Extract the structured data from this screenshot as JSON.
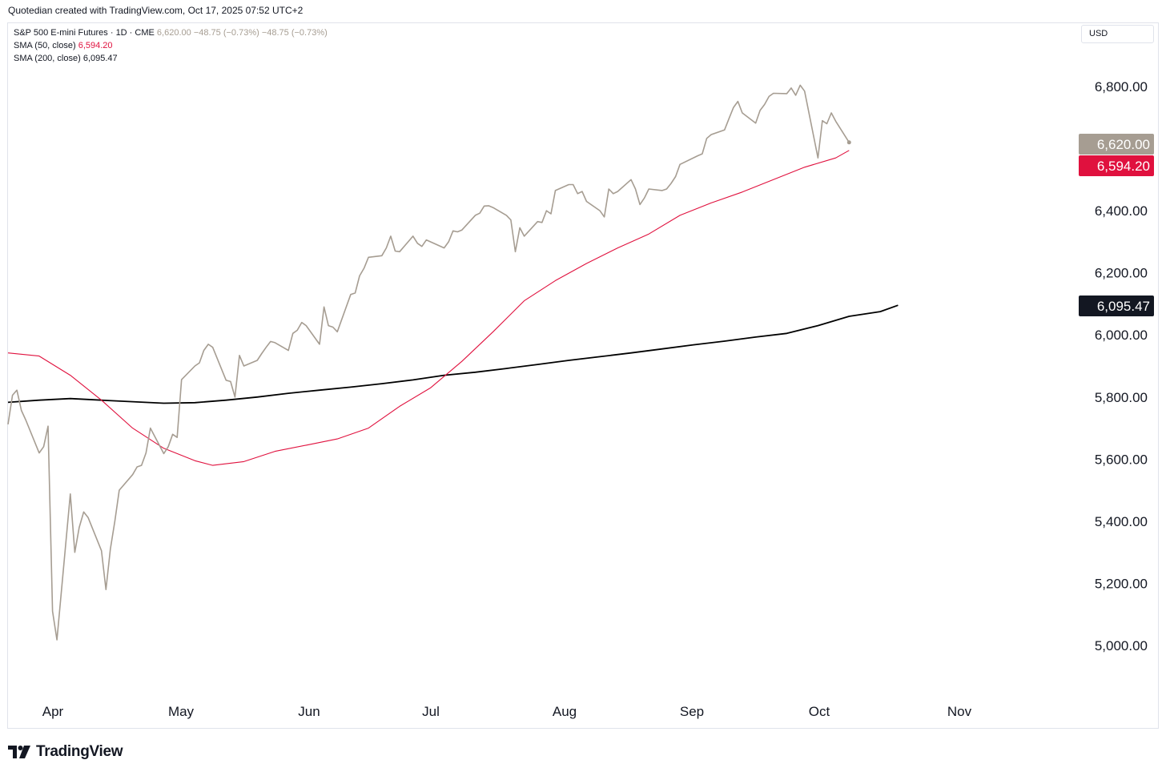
{
  "header": {
    "credit": "Quotedian created with TradingView.com, Oct 17, 2025 07:52 UTC+2"
  },
  "legend": {
    "symbol": "S&P 500 E-mini Futures · 1D · CME",
    "price": "6,620.00",
    "change1": "−48.75 (−0.73%)",
    "change2": "−48.75 (−0.73%)",
    "sma50_label": "SMA (50, close)",
    "sma50_value": "6,594.20",
    "sma200_label": "SMA (200, close)",
    "sma200_value": "6,095.47"
  },
  "currency": "USD",
  "logo": {
    "text": "TradingView"
  },
  "colors": {
    "price": "#a69d92",
    "sma50": "#e0113e",
    "sma200": "#000000",
    "text": "#131722"
  },
  "chart_data": {
    "type": "line",
    "title": "S&P 500 E-mini Futures · 1D · CME",
    "x_months": [
      "Apr",
      "May",
      "Jun",
      "Jul",
      "Aug",
      "Sep",
      "Oct",
      "Nov"
    ],
    "x_range": [
      "2025-03-31",
      "2025-11-05"
    ],
    "ylim": [
      4800,
      7000
    ],
    "y_ticks": [
      {
        "value": 5000,
        "label": "5,000.00"
      },
      {
        "value": 5200,
        "label": "5,200.00"
      },
      {
        "value": 5400,
        "label": "5,400.00"
      },
      {
        "value": 5600,
        "label": "5,600.00"
      },
      {
        "value": 5800,
        "label": "5,800.00"
      },
      {
        "value": 6000,
        "label": "6,000.00"
      },
      {
        "value": 6200,
        "label": "6,200.00"
      },
      {
        "value": 6400,
        "label": "6,400.00"
      },
      {
        "value": 6800,
        "label": "6,800.00"
      }
    ],
    "price_labels": [
      {
        "value": 6620.0,
        "label": "6,620.00",
        "color": "#a69d92"
      },
      {
        "value": 6594.2,
        "label": "6,594.20",
        "color": "#e0113e"
      },
      {
        "value": 6095.47,
        "label": "6,095.47",
        "color": "#131722"
      }
    ],
    "series": [
      {
        "name": "S&P 500 E-mini Futures",
        "color": "#a69d92",
        "points": [
          [
            "2025-03-31",
            5712
          ],
          [
            "2025-04-01",
            5806
          ],
          [
            "2025-04-02",
            5822
          ],
          [
            "2025-04-03",
            5757
          ],
          [
            "2025-04-04",
            5726
          ],
          [
            "2025-04-07",
            5620
          ],
          [
            "2025-04-08",
            5640
          ],
          [
            "2025-04-09",
            5706
          ],
          [
            "2025-04-10",
            5110
          ],
          [
            "2025-04-11",
            5018
          ],
          [
            "2025-04-14",
            5488
          ],
          [
            "2025-04-15",
            5300
          ],
          [
            "2025-04-16",
            5380
          ],
          [
            "2025-04-17",
            5430
          ],
          [
            "2025-04-18",
            5412
          ],
          [
            "2025-04-21",
            5305
          ],
          [
            "2025-04-22",
            5180
          ],
          [
            "2025-04-23",
            5310
          ],
          [
            "2025-04-24",
            5400
          ],
          [
            "2025-04-25",
            5500
          ],
          [
            "2025-04-28",
            5550
          ],
          [
            "2025-04-29",
            5575
          ],
          [
            "2025-04-30",
            5580
          ],
          [
            "2025-05-01",
            5620
          ],
          [
            "2025-05-02",
            5700
          ],
          [
            "2025-05-05",
            5618
          ],
          [
            "2025-05-06",
            5640
          ],
          [
            "2025-05-07",
            5680
          ],
          [
            "2025-05-08",
            5670
          ],
          [
            "2025-05-09",
            5856
          ],
          [
            "2025-05-12",
            5900
          ],
          [
            "2025-05-13",
            5910
          ],
          [
            "2025-05-14",
            5950
          ],
          [
            "2025-05-15",
            5970
          ],
          [
            "2025-05-16",
            5960
          ],
          [
            "2025-05-19",
            5854
          ],
          [
            "2025-05-20",
            5850
          ],
          [
            "2025-05-21",
            5800
          ],
          [
            "2025-05-22",
            5934
          ],
          [
            "2025-05-23",
            5900
          ],
          [
            "2025-05-26",
            5918
          ],
          [
            "2025-05-27",
            5940
          ],
          [
            "2025-05-28",
            5960
          ],
          [
            "2025-05-29",
            5979
          ],
          [
            "2025-05-30",
            5975
          ],
          [
            "2025-06-02",
            5950
          ],
          [
            "2025-06-03",
            6005
          ],
          [
            "2025-06-04",
            6015
          ],
          [
            "2025-06-05",
            6040
          ],
          [
            "2025-06-06",
            6030
          ],
          [
            "2025-06-09",
            5970
          ],
          [
            "2025-06-10",
            6090
          ],
          [
            "2025-06-11",
            6030
          ],
          [
            "2025-06-12",
            6025
          ],
          [
            "2025-06-13",
            6010
          ],
          [
            "2025-06-16",
            6130
          ],
          [
            "2025-06-17",
            6135
          ],
          [
            "2025-06-18",
            6190
          ],
          [
            "2025-06-19",
            6215
          ],
          [
            "2025-06-20",
            6250
          ],
          [
            "2025-06-23",
            6255
          ],
          [
            "2025-06-24",
            6280
          ],
          [
            "2025-06-25",
            6318
          ],
          [
            "2025-06-26",
            6270
          ],
          [
            "2025-06-27",
            6268
          ],
          [
            "2025-06-30",
            6318
          ],
          [
            "2025-07-01",
            6295
          ],
          [
            "2025-07-02",
            6285
          ],
          [
            "2025-07-03",
            6306
          ],
          [
            "2025-07-07",
            6280
          ],
          [
            "2025-07-08",
            6300
          ],
          [
            "2025-07-09",
            6335
          ],
          [
            "2025-07-10",
            6332
          ],
          [
            "2025-07-11",
            6338
          ],
          [
            "2025-07-14",
            6385
          ],
          [
            "2025-07-15",
            6392
          ],
          [
            "2025-07-16",
            6415
          ],
          [
            "2025-07-17",
            6416
          ],
          [
            "2025-07-18",
            6410
          ],
          [
            "2025-07-21",
            6385
          ],
          [
            "2025-07-22",
            6370
          ],
          [
            "2025-07-23",
            6268
          ],
          [
            "2025-07-24",
            6345
          ],
          [
            "2025-07-25",
            6318
          ],
          [
            "2025-07-28",
            6365
          ],
          [
            "2025-07-29",
            6362
          ],
          [
            "2025-07-30",
            6400
          ],
          [
            "2025-07-31",
            6390
          ],
          [
            "2025-08-01",
            6465
          ],
          [
            "2025-08-04",
            6484
          ],
          [
            "2025-08-05",
            6484
          ],
          [
            "2025-08-06",
            6455
          ],
          [
            "2025-08-07",
            6462
          ],
          [
            "2025-08-08",
            6430
          ],
          [
            "2025-08-11",
            6400
          ],
          [
            "2025-08-12",
            6380
          ],
          [
            "2025-08-13",
            6470
          ],
          [
            "2025-08-14",
            6455
          ],
          [
            "2025-08-15",
            6462
          ],
          [
            "2025-08-18",
            6500
          ],
          [
            "2025-08-19",
            6470
          ],
          [
            "2025-08-20",
            6420
          ],
          [
            "2025-08-21",
            6441
          ],
          [
            "2025-08-22",
            6470
          ],
          [
            "2025-08-25",
            6465
          ],
          [
            "2025-08-26",
            6470
          ],
          [
            "2025-08-27",
            6488
          ],
          [
            "2025-08-28",
            6510
          ],
          [
            "2025-08-29",
            6549
          ],
          [
            "2025-09-02",
            6577
          ],
          [
            "2025-09-03",
            6583
          ],
          [
            "2025-09-04",
            6633
          ],
          [
            "2025-09-05",
            6645
          ],
          [
            "2025-09-08",
            6660
          ],
          [
            "2025-09-09",
            6696
          ],
          [
            "2025-09-10",
            6732
          ],
          [
            "2025-09-11",
            6752
          ],
          [
            "2025-09-12",
            6715
          ],
          [
            "2025-09-15",
            6682
          ],
          [
            "2025-09-16",
            6723
          ],
          [
            "2025-09-17",
            6742
          ],
          [
            "2025-09-18",
            6768
          ],
          [
            "2025-09-19",
            6778
          ],
          [
            "2025-09-22",
            6777
          ],
          [
            "2025-09-23",
            6795
          ],
          [
            "2025-09-24",
            6772
          ],
          [
            "2025-09-25",
            6804
          ],
          [
            "2025-09-26",
            6785
          ],
          [
            "2025-09-29",
            6570
          ],
          [
            "2025-09-30",
            6690
          ],
          [
            "2025-10-01",
            6680
          ],
          [
            "2025-10-02",
            6715
          ],
          [
            "2025-10-03",
            6688
          ],
          [
            "2025-10-06",
            6620
          ]
        ]
      },
      {
        "name": "SMA (50, close)",
        "color": "#e0113e",
        "points": [
          [
            "2025-03-31",
            5942
          ],
          [
            "2025-04-07",
            5932
          ],
          [
            "2025-04-14",
            5870
          ],
          [
            "2025-04-21",
            5790
          ],
          [
            "2025-04-28",
            5700
          ],
          [
            "2025-05-05",
            5635
          ],
          [
            "2025-05-12",
            5595
          ],
          [
            "2025-05-16",
            5580
          ],
          [
            "2025-05-23",
            5592
          ],
          [
            "2025-05-30",
            5625
          ],
          [
            "2025-06-06",
            5645
          ],
          [
            "2025-06-13",
            5665
          ],
          [
            "2025-06-20",
            5700
          ],
          [
            "2025-06-27",
            5770
          ],
          [
            "2025-07-04",
            5830
          ],
          [
            "2025-07-11",
            5915
          ],
          [
            "2025-07-18",
            6010
          ],
          [
            "2025-07-25",
            6110
          ],
          [
            "2025-08-01",
            6175
          ],
          [
            "2025-08-08",
            6230
          ],
          [
            "2025-08-15",
            6280
          ],
          [
            "2025-08-22",
            6325
          ],
          [
            "2025-08-29",
            6385
          ],
          [
            "2025-09-05",
            6425
          ],
          [
            "2025-09-12",
            6460
          ],
          [
            "2025-09-19",
            6500
          ],
          [
            "2025-09-26",
            6540
          ],
          [
            "2025-10-03",
            6570
          ],
          [
            "2025-10-06",
            6594.2
          ]
        ]
      },
      {
        "name": "SMA (200, close)",
        "color": "#000000",
        "points": [
          [
            "2025-03-31",
            5783
          ],
          [
            "2025-04-07",
            5790
          ],
          [
            "2025-04-14",
            5795
          ],
          [
            "2025-04-21",
            5790
          ],
          [
            "2025-04-28",
            5785
          ],
          [
            "2025-05-05",
            5780
          ],
          [
            "2025-05-12",
            5782
          ],
          [
            "2025-05-19",
            5790
          ],
          [
            "2025-05-26",
            5800
          ],
          [
            "2025-06-02",
            5812
          ],
          [
            "2025-06-09",
            5822
          ],
          [
            "2025-06-16",
            5832
          ],
          [
            "2025-06-23",
            5843
          ],
          [
            "2025-06-30",
            5855
          ],
          [
            "2025-07-07",
            5870
          ],
          [
            "2025-07-14",
            5880
          ],
          [
            "2025-07-21",
            5892
          ],
          [
            "2025-07-28",
            5905
          ],
          [
            "2025-08-04",
            5918
          ],
          [
            "2025-08-11",
            5930
          ],
          [
            "2025-08-18",
            5942
          ],
          [
            "2025-08-25",
            5955
          ],
          [
            "2025-09-01",
            5968
          ],
          [
            "2025-09-08",
            5980
          ],
          [
            "2025-09-15",
            5993
          ],
          [
            "2025-09-22",
            6005
          ],
          [
            "2025-09-29",
            6030
          ],
          [
            "2025-10-06",
            6060
          ],
          [
            "2025-10-13",
            6075
          ],
          [
            "2025-10-17",
            6095.47
          ]
        ]
      }
    ],
    "grid": false,
    "legend_position": "top-left"
  }
}
